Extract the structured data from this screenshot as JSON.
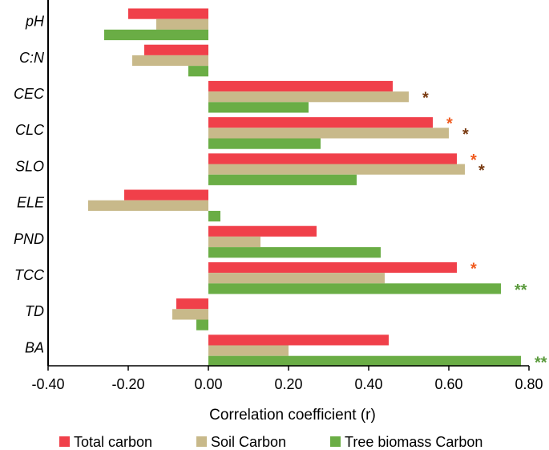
{
  "chart_data": {
    "type": "bar",
    "orientation": "horizontal",
    "title": "",
    "xlabel": "Correlation coefficient (r)",
    "ylabel": "",
    "xlim": [
      -0.4,
      0.8
    ],
    "xticks": [
      "-0.40",
      "-0.20",
      "0.00",
      "0.20",
      "0.40",
      "0.60",
      "0.80"
    ],
    "xtick_values": [
      -0.4,
      -0.2,
      0.0,
      0.2,
      0.4,
      0.6,
      0.8
    ],
    "categories": [
      "pH",
      "C:N",
      "CEC",
      "CLC",
      "SLO",
      "ELE",
      "PND",
      "TCC",
      "TD",
      "BA"
    ],
    "series": [
      {
        "name": "Total carbon",
        "color": "#f0404a",
        "values": [
          -0.2,
          -0.16,
          0.46,
          0.56,
          0.62,
          -0.21,
          0.27,
          0.62,
          -0.08,
          0.45
        ],
        "marks": [
          "",
          "",
          "",
          "*",
          "*",
          "",
          "",
          "*",
          "",
          ""
        ],
        "mark_color": "#f05a1e"
      },
      {
        "name": "Soil Carbon",
        "color": "#c8b98a",
        "values": [
          -0.13,
          -0.19,
          0.5,
          0.6,
          0.64,
          -0.3,
          0.13,
          0.44,
          -0.09,
          0.2
        ],
        "marks": [
          "",
          "",
          "*",
          "*",
          "*",
          "",
          "",
          "",
          "",
          ""
        ],
        "mark_color": "#7a3b12"
      },
      {
        "name": "Tree biomass Carbon",
        "color": "#6aad45",
        "values": [
          -0.26,
          -0.05,
          0.25,
          0.28,
          0.37,
          0.03,
          0.43,
          0.73,
          -0.03,
          0.78
        ],
        "marks": [
          "",
          "",
          "",
          "",
          "",
          "",
          "",
          "**",
          "",
          "**"
        ],
        "mark_color": "#5a9a3c"
      }
    ],
    "legend_position": "bottom",
    "grid": false
  }
}
